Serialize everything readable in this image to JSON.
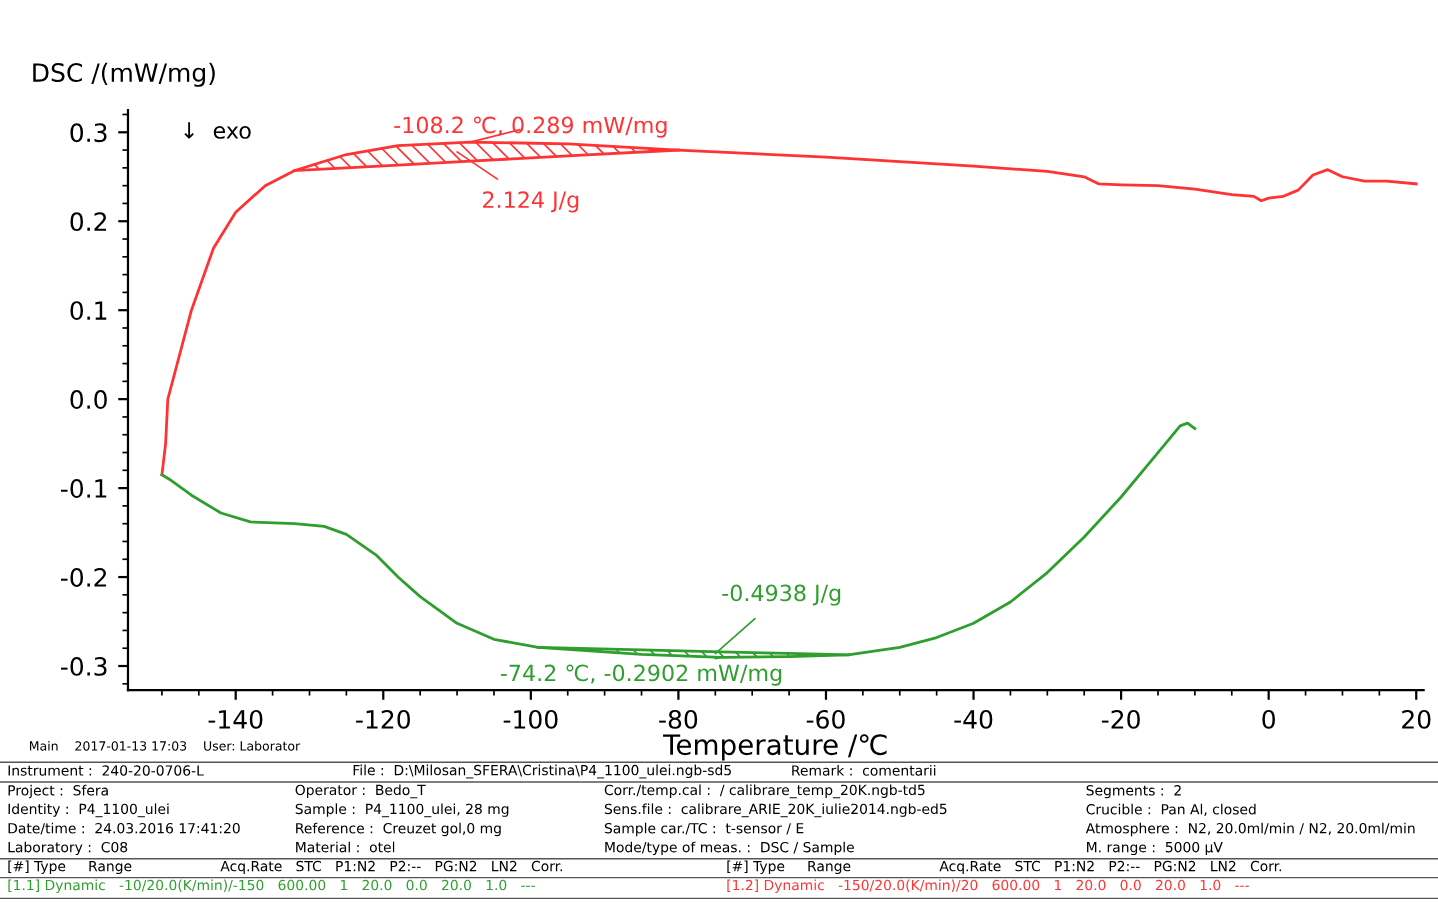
{
  "chart_data": {
    "type": "line",
    "xlabel": "Temperature /℃",
    "ylabel": "DSC /(mW/mg)",
    "xlim": [
      -154.6,
      21
    ],
    "ylim": [
      -0.327,
      0.325
    ],
    "xticks": [
      -140,
      -120,
      -100,
      -80,
      -60,
      -40,
      -20,
      0,
      20
    ],
    "yticks": [
      -0.3,
      -0.2,
      -0.1,
      {
        "value": 0,
        "label": "0.0"
      },
      0.1,
      0.2,
      0.3
    ],
    "grid": false,
    "legend": false,
    "line_style": "solid",
    "marker": "none",
    "series": [
      {
        "color": "#ff3333",
        "x": [
          -150,
          -149.5,
          -149.2,
          -146,
          -143,
          -140,
          -136,
          -132,
          -125,
          -118,
          -108.2,
          -95,
          -80,
          -60,
          -40,
          -30,
          -25,
          -23,
          -20,
          -15,
          -10,
          -5,
          -2,
          -1,
          0,
          2,
          4,
          6,
          8,
          10,
          13,
          16,
          20
        ],
        "values": [
          -0.085,
          -0.05,
          0.0,
          0.1,
          0.17,
          0.21,
          0.24,
          0.257,
          0.275,
          0.285,
          0.289,
          0.287,
          0.28,
          0.272,
          0.262,
          0.256,
          0.25,
          0.242,
          0.241,
          0.24,
          0.236,
          0.23,
          0.228,
          0.223,
          0.226,
          0.228,
          0.235,
          0.252,
          0.258,
          0.25,
          0.245,
          0.245,
          0.242
        ]
      },
      {
        "color": "#2e9e2e",
        "x": [
          -10,
          -11,
          -12,
          -15,
          -20,
          -25,
          -30,
          -35,
          -40,
          -45,
          -50,
          -57,
          -65,
          -74.2,
          -85,
          -99,
          -105,
          -110,
          -115,
          -118,
          -121,
          -125,
          -128,
          -132,
          -138,
          -142,
          -146,
          -149,
          -150
        ],
        "values": [
          -0.033,
          -0.027,
          -0.03,
          -0.06,
          -0.11,
          -0.155,
          -0.195,
          -0.228,
          -0.252,
          -0.268,
          -0.279,
          -0.2875,
          -0.2895,
          -0.2902,
          -0.287,
          -0.279,
          -0.27,
          -0.252,
          -0.222,
          -0.2,
          -0.175,
          -0.152,
          -0.143,
          -0.14,
          -0.138,
          -0.128,
          -0.108,
          -0.09,
          -0.085
        ]
      },
      {
        "type": "line",
        "color": "#ff3333",
        "x": [
          -132,
          -125,
          -118,
          -108.2,
          -95,
          -80
        ],
        "values": [
          0.257,
          0.2601,
          0.2632,
          0.2676,
          0.2734,
          0.28
        ],
        "lower": [
          0.257,
          0.2601,
          0.2632,
          0.2676,
          0.2734,
          0.28
        ],
        "upper": [
          0.257,
          0.275,
          0.285,
          0.289,
          0.287,
          0.28
        ]
      },
      {
        "type": "line",
        "color": "#2e9e2e",
        "x": [
          -99,
          -85,
          -74.2,
          -65,
          -57
        ],
        "values": [
          -0.279,
          -0.2818,
          -0.284,
          -0.2859,
          -0.2875
        ],
        "lower": [
          -0.279,
          -0.287,
          -0.2902,
          -0.2895,
          -0.2875
        ],
        "upper": [
          -0.279,
          -0.2818,
          -0.284,
          -0.2859,
          -0.2875
        ]
      }
    ],
    "annotations": [
      {
        "text": "-108.2 ℃, 0.289 mW/mg",
        "x": -108.2,
        "y": 0.289
      },
      {
        "text": "2.124 J/g",
        "x": -110,
        "y": 0.278
      },
      {
        "text": "-0.4938 J/g",
        "x": -75,
        "y": -0.286
      },
      {
        "text": "-74.2 ℃, -0.2902 mW/mg",
        "x": -74.2,
        "y": -0.2902
      },
      "↓  exo",
      "Main    2017-01-13 17:03    User: Laborator",
      "Instrument :  240-20-0706-L",
      "File :  D:\\Milosan_SFERA\\Cristina\\P4_1100_ulei.ngb-sd5",
      "Remark :  comentarii",
      "Project :  Sfera",
      "Identity :  P4_1100_ulei",
      "Date/time :  24.03.2016 17:41:20",
      "Laboratory :  C08",
      "Operator :  Bedo_T",
      "Sample :  P4_1100_ulei, 28 mg",
      "Reference :  Creuzet gol,0 mg",
      "Material :  otel",
      "Corr./temp.cal :  / calibrare_temp_20K.ngb-td5",
      "Sens.file :  calibrare_ARIE_20K_iulie2014.ngb-ed5",
      "Sample car./TC :  t-sensor / E",
      "Mode/type of meas. :  DSC / Sample",
      "Segments :  2",
      "Crucible :  Pan Al, closed",
      "Atmosphere :  N2, 20.0ml/min / N2, 20.0ml/min",
      "M. range :  5000 µV",
      "[#] Type     Range                    Acq.Rate   STC   P1:N2   P2:--   PG:N2   LN2   Corr.",
      "[#] Type     Range                    Acq.Rate   STC   P1:N2   P2:--   PG:N2   LN2   Corr.",
      "[1.1] Dynamic   -10/20.0(K/min)/-150   600.00   1   20.0   0.0   20.0   1.0   ---",
      "[1.2] Dynamic   -150/20.0(K/min)/20   600.00   1   20.0   0.0   20.0   1.0   ---"
    ]
  }
}
